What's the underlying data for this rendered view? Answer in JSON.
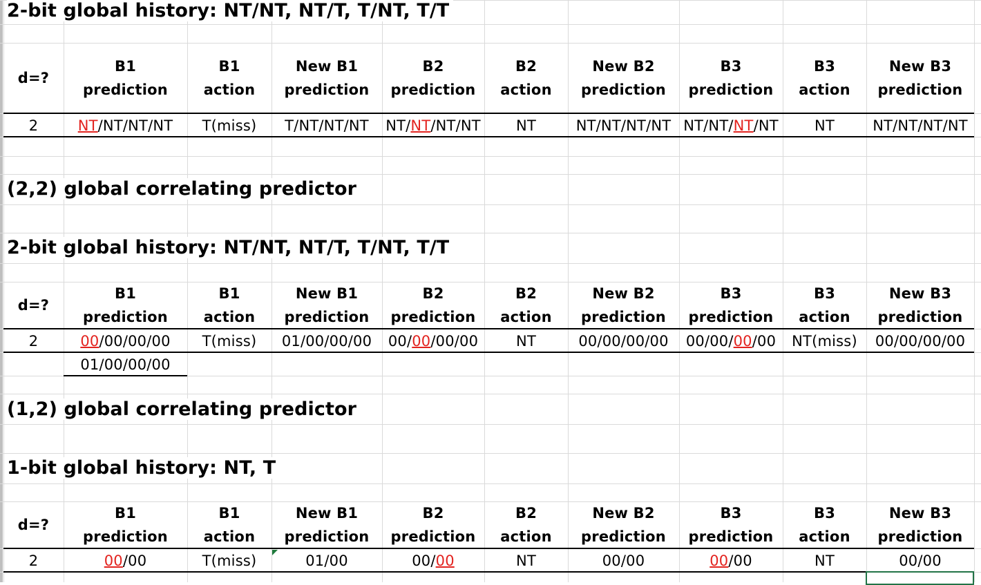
{
  "sections": {
    "s1_title": "2-bit global history: NT/NT, NT/T, T/NT, T/T",
    "s2_title": "(2,2) global correlating predictor",
    "s3_title": "2-bit global history: NT/NT, NT/T, T/NT, T/T",
    "s4_title": "(1,2) global correlating predictor",
    "s5_title": "1-bit global history: NT, T"
  },
  "headers": [
    {
      "l1": "d=?",
      "l2": ""
    },
    {
      "l1": "B1",
      "l2": "prediction"
    },
    {
      "l1": "B1",
      "l2": "action"
    },
    {
      "l1": "New B1",
      "l2": "prediction"
    },
    {
      "l1": "B2",
      "l2": "prediction"
    },
    {
      "l1": "B2",
      "l2": "action"
    },
    {
      "l1": "New B2",
      "l2": "prediction"
    },
    {
      "l1": "B3",
      "l2": "prediction"
    },
    {
      "l1": "B3",
      "l2": "action"
    },
    {
      "l1": "New B3",
      "l2": "prediction"
    }
  ],
  "table1": {
    "d": "2",
    "cells": [
      {
        "pre": "",
        "hl": "NT",
        "post": "/NT/NT/NT"
      },
      {
        "pre": "T(miss)",
        "hl": "",
        "post": ""
      },
      {
        "pre": "T/NT/NT/NT",
        "hl": "",
        "post": ""
      },
      {
        "pre": "NT/",
        "hl": "NT",
        "post": "/NT/NT"
      },
      {
        "pre": "NT",
        "hl": "",
        "post": ""
      },
      {
        "pre": "NT/NT/NT/NT",
        "hl": "",
        "post": ""
      },
      {
        "pre": "NT/NT/",
        "hl": "NT",
        "post": "/NT"
      },
      {
        "pre": "NT",
        "hl": "",
        "post": ""
      },
      {
        "pre": "NT/NT/NT/NT",
        "hl": "",
        "post": ""
      }
    ]
  },
  "table2": {
    "d": "2",
    "cells": [
      {
        "pre": "",
        "hl": "00",
        "post": "/00/00/00"
      },
      {
        "pre": "T(miss)",
        "hl": "",
        "post": ""
      },
      {
        "pre": "01/00/00/00",
        "hl": "",
        "post": ""
      },
      {
        "pre": "00/",
        "hl": "00",
        "post": "/00/00"
      },
      {
        "pre": "NT",
        "hl": "",
        "post": ""
      },
      {
        "pre": "00/00/00/00",
        "hl": "",
        "post": ""
      },
      {
        "pre": "00/00/",
        "hl": "00",
        "post": "/00"
      },
      {
        "pre": "NT(miss)",
        "hl": "",
        "post": ""
      },
      {
        "pre": "00/00/00/00",
        "hl": "",
        "post": ""
      }
    ],
    "extra_b1": "01/00/00/00"
  },
  "table3": {
    "d": "2",
    "cells": [
      {
        "pre": "",
        "hl": "00",
        "post": "/00"
      },
      {
        "pre": "T(miss)",
        "hl": "",
        "post": ""
      },
      {
        "pre": "01/00",
        "hl": "",
        "post": ""
      },
      {
        "pre": "00/",
        "hl": "00",
        "post": ""
      },
      {
        "pre": "NT",
        "hl": "",
        "post": ""
      },
      {
        "pre": "00/00",
        "hl": "",
        "post": ""
      },
      {
        "pre": "",
        "hl": "00",
        "post": "/00"
      },
      {
        "pre": "NT",
        "hl": "",
        "post": ""
      },
      {
        "pre": "00/00",
        "hl": "",
        "post": ""
      }
    ]
  },
  "colors": {
    "highlight": "#e3231f",
    "grid": "#dadada",
    "selection": "#217346"
  }
}
